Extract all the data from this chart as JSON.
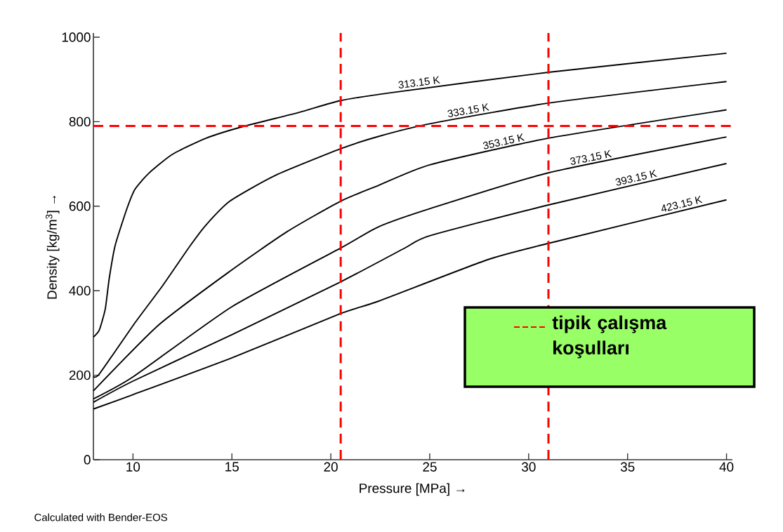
{
  "chart_data": {
    "type": "line",
    "xlabel": "Pressure [MPa] →",
    "ylabel": "Density [kg/m$^{3}$] →",
    "xlim": [
      8,
      40.3
    ],
    "ylim": [
      0,
      1010
    ],
    "xticks": [
      10,
      15,
      20,
      25,
      30,
      35,
      40
    ],
    "yticks": [
      0,
      200,
      400,
      600,
      800,
      1000
    ],
    "grid": false,
    "marker": "none",
    "line_style": "solid",
    "series": [
      {
        "name": "313.15 K",
        "color": "#000000",
        "x": [
          8,
          8.3,
          8.6,
          8.8,
          9.1,
          9.7,
          10.1,
          10.8,
          12,
          13.7,
          15.6,
          18.4,
          20.5,
          23.1,
          31,
          40
        ],
        "values": [
          290,
          307,
          357,
          429,
          507,
          595,
          640,
          678,
          723,
          761,
          789,
          822,
          850,
          869,
          917,
          962
        ]
      },
      {
        "name": "333.15 K",
        "color": "#000000",
        "x": [
          8,
          8.3,
          10.1,
          11.5,
          12.9,
          13.7,
          14.9,
          17.2,
          20.5,
          22.4,
          25,
          31,
          40
        ],
        "values": [
          197,
          203,
          324,
          412,
          507,
          556,
          612,
          673,
          736,
          765,
          795,
          844,
          895
        ]
      },
      {
        "name": "353.15 K",
        "color": "#000000",
        "x": [
          8,
          11.3,
          14.9,
          17.8,
          20.5,
          22.4,
          25,
          31,
          40
        ],
        "values": [
          163,
          319,
          446,
          540,
          612,
          649,
          698,
          761,
          828
        ]
      },
      {
        "name": "373.15 K",
        "color": "#000000",
        "x": [
          8,
          10,
          15,
          20.5,
          22.4,
          25,
          31,
          40
        ],
        "values": [
          144,
          196,
          362,
          501,
          551,
          594,
          679,
          764
        ]
      },
      {
        "name": "393.15 K",
        "color": "#000000",
        "x": [
          8,
          10,
          15,
          20.5,
          23.7,
          25,
          31,
          40
        ],
        "values": [
          136,
          186,
          296,
          421,
          500,
          530,
          603,
          701
        ]
      },
      {
        "name": "423.15 K",
        "color": "#000000",
        "x": [
          8,
          10,
          15,
          20.5,
          22.4,
          27.9,
          31,
          40
        ],
        "values": [
          120,
          154,
          241,
          346,
          375,
          473,
          512,
          615
        ]
      }
    ],
    "ref_lines": [
      {
        "axis": "x",
        "value": 20.5,
        "color": "#ff0000",
        "line_style": "dashed"
      },
      {
        "axis": "x",
        "value": 31,
        "color": "#ff0000",
        "line_style": "dashed"
      },
      {
        "axis": "y",
        "value": 790,
        "color": "#ff0000",
        "line_style": "dashed"
      }
    ],
    "annotations": [
      "Calculated with Bender-EOS",
      "tipik çalışma koşulları"
    ]
  }
}
